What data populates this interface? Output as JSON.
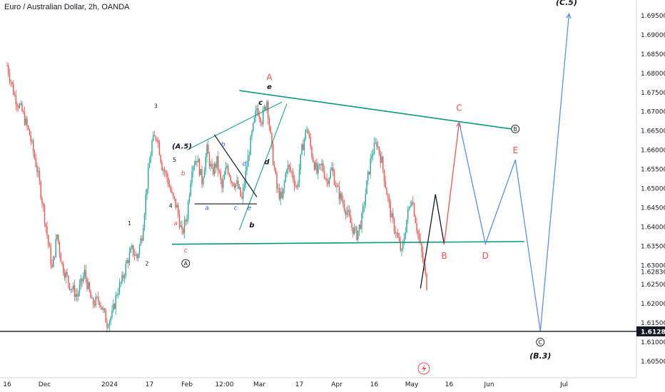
{
  "header": {
    "title": "Euro / Australian Dollar, 2h, OANDA"
  },
  "chart_data": {
    "type": "candlestick",
    "title": "Euro / Australian Dollar, 2h, OANDA",
    "ylim": [
      1.603,
      1.699
    ],
    "y_ticks": [
      "1.69500",
      "1.69000",
      "1.68500",
      "1.68000",
      "1.67500",
      "1.67000",
      "1.66500",
      "1.66000",
      "1.65500",
      "1.65000",
      "1.64500",
      "1.64000",
      "1.63500",
      "1.63000",
      "1.62830",
      "1.62500",
      "1.62000",
      "1.61500",
      "1.61000",
      "1.60500"
    ],
    "x_ticks": [
      {
        "label": "16",
        "t": 0.0
      },
      {
        "label": "Dec",
        "t": 15.0
      },
      {
        "label": "2024",
        "t": 41.0
      },
      {
        "label": "17",
        "t": 57.0
      },
      {
        "label": "Feb",
        "t": 72.0
      },
      {
        "label": "12:00",
        "t": 87.0
      },
      {
        "label": "Mar",
        "t": 101.0
      },
      {
        "label": "17",
        "t": 117.0
      },
      {
        "label": "Apr",
        "t": 132.0
      },
      {
        "label": "16",
        "t": 147.0
      },
      {
        "label": "May",
        "t": 162.0
      },
      {
        "label": "16",
        "t": 177.0
      },
      {
        "label": "Jun",
        "t": 193.0
      },
      {
        "label": "Jul",
        "t": 223.0
      }
    ],
    "price_line": {
      "value": 1.61281,
      "label": "1.61281",
      "color": "#131722"
    },
    "candle_colors": {
      "up": "#26a69a",
      "down": "#ef5350"
    },
    "price_path": [
      [
        0,
        1.682
      ],
      [
        3,
        1.674
      ],
      [
        6,
        1.67
      ],
      [
        9,
        1.664
      ],
      [
        12,
        1.655
      ],
      [
        14,
        1.647
      ],
      [
        16,
        1.638
      ],
      [
        18,
        1.629
      ],
      [
        20,
        1.638
      ],
      [
        22,
        1.63
      ],
      [
        25,
        1.625
      ],
      [
        28,
        1.622
      ],
      [
        31,
        1.628
      ],
      [
        34,
        1.62
      ],
      [
        37,
        1.621
      ],
      [
        40,
        1.615
      ],
      [
        42,
        1.617
      ],
      [
        44,
        1.623
      ],
      [
        46,
        1.626
      ],
      [
        48,
        1.631
      ],
      [
        50,
        1.634
      ],
      [
        52,
        1.632
      ],
      [
        54,
        1.638
      ],
      [
        56,
        1.651
      ],
      [
        58,
        1.662
      ],
      [
        60,
        1.664
      ],
      [
        62,
        1.656
      ],
      [
        64,
        1.653
      ],
      [
        66,
        1.648
      ],
      [
        68,
        1.645
      ],
      [
        70,
        1.638
      ],
      [
        72,
        1.643
      ],
      [
        74,
        1.656
      ],
      [
        76,
        1.658
      ],
      [
        78,
        1.652
      ],
      [
        80,
        1.66
      ],
      [
        82,
        1.654
      ],
      [
        84,
        1.657
      ],
      [
        86,
        1.65
      ],
      [
        88,
        1.656
      ],
      [
        90,
        1.652
      ],
      [
        92,
        1.651
      ],
      [
        94,
        1.647
      ],
      [
        96,
        1.656
      ],
      [
        98,
        1.664
      ],
      [
        100,
        1.671
      ],
      [
        102,
        1.668
      ],
      [
        104,
        1.673
      ],
      [
        106,
        1.66
      ],
      [
        108,
        1.65
      ],
      [
        110,
        1.647
      ],
      [
        112,
        1.656
      ],
      [
        114,
        1.654
      ],
      [
        116,
        1.65
      ],
      [
        118,
        1.66
      ],
      [
        120,
        1.666
      ],
      [
        122,
        1.659
      ],
      [
        124,
        1.654
      ],
      [
        126,
        1.656
      ],
      [
        128,
        1.652
      ],
      [
        130,
        1.655
      ],
      [
        132,
        1.65
      ],
      [
        134,
        1.647
      ],
      [
        136,
        1.644
      ],
      [
        138,
        1.64
      ],
      [
        140,
        1.638
      ],
      [
        142,
        1.642
      ],
      [
        144,
        1.651
      ],
      [
        146,
        1.659
      ],
      [
        148,
        1.662
      ],
      [
        150,
        1.657
      ],
      [
        152,
        1.649
      ],
      [
        154,
        1.642
      ],
      [
        156,
        1.638
      ],
      [
        158,
        1.633
      ],
      [
        160,
        1.642
      ],
      [
        162,
        1.648
      ],
      [
        164,
        1.64
      ],
      [
        166,
        1.633
      ],
      [
        168,
        1.625
      ]
    ],
    "annotations": [
      {
        "text": "(C.5)",
        "t": 224,
        "v": 1.6985,
        "color": "#131722",
        "italic": true,
        "bold": true,
        "size": 11
      },
      {
        "text": "A",
        "t": 105,
        "v": 1.679,
        "color": "#ef5350",
        "size": 12
      },
      {
        "text": "e",
        "t": 105,
        "v": 1.6765,
        "color": "#131722",
        "italic": true,
        "bold": true,
        "size": 10
      },
      {
        "text": "c",
        "t": 101.5,
        "v": 1.6725,
        "color": "#131722",
        "italic": true,
        "bold": true,
        "size": 10
      },
      {
        "text": "3",
        "t": 59.5,
        "v": 1.6715,
        "color": "#131722",
        "size": 8
      },
      {
        "text": "C",
        "t": 181,
        "v": 1.671,
        "color": "#ef5350",
        "size": 12
      },
      {
        "text": "B",
        "t": 203.5,
        "v": 1.6655,
        "color": "#131722",
        "circled": true,
        "size": 8
      },
      {
        "text": "E",
        "t": 203.5,
        "v": 1.66,
        "color": "#ef5350",
        "size": 12
      },
      {
        "text": "(A.5)",
        "t": 70,
        "v": 1.661,
        "color": "#131722",
        "italic": true,
        "bold": true,
        "size": 10
      },
      {
        "text": "5",
        "t": 67,
        "v": 1.6575,
        "color": "#131722",
        "size": 8
      },
      {
        "text": "b",
        "t": 86.5,
        "v": 1.6615,
        "color": "#2962ff",
        "italic": true,
        "size": 9
      },
      {
        "text": "d",
        "t": 95,
        "v": 1.6565,
        "color": "#2962ff",
        "italic": true,
        "size": 9
      },
      {
        "text": "d",
        "t": 104,
        "v": 1.657,
        "color": "#131722",
        "italic": true,
        "bold": true,
        "size": 10
      },
      {
        "text": "b",
        "t": 70.5,
        "v": 1.654,
        "color": "#ef5350",
        "italic": true,
        "size": 9
      },
      {
        "text": "4",
        "t": 65.5,
        "v": 1.6455,
        "color": "#131722",
        "size": 8
      },
      {
        "text": "a",
        "t": 80,
        "v": 1.645,
        "color": "#2962ff",
        "italic": true,
        "size": 9
      },
      {
        "text": "c",
        "t": 91.5,
        "v": 1.645,
        "color": "#2962ff",
        "italic": true,
        "size": 9
      },
      {
        "text": "e",
        "t": 97,
        "v": 1.645,
        "color": "#2962ff",
        "italic": true,
        "size": 9
      },
      {
        "text": "1",
        "t": 49,
        "v": 1.641,
        "color": "#131722",
        "size": 8
      },
      {
        "text": "a",
        "t": 67.5,
        "v": 1.641,
        "color": "#ef5350",
        "italic": true,
        "size": 9
      },
      {
        "text": "b",
        "t": 98,
        "v": 1.6405,
        "color": "#131722",
        "italic": true,
        "bold": true,
        "size": 10
      },
      {
        "text": "c",
        "t": 71.5,
        "v": 1.634,
        "color": "#ef5350",
        "italic": true,
        "size": 9
      },
      {
        "text": "A",
        "t": 71.5,
        "v": 1.6305,
        "color": "#131722",
        "circled": true,
        "size": 8
      },
      {
        "text": "2",
        "t": 56,
        "v": 1.6305,
        "color": "#131722",
        "size": 8
      },
      {
        "text": "B",
        "t": 175,
        "v": 1.6325,
        "color": "#ef5350",
        "size": 12
      },
      {
        "text": "D",
        "t": 191.5,
        "v": 1.6325,
        "color": "#ef5350",
        "size": 12
      },
      {
        "text": "C",
        "t": 213.5,
        "v": 1.61,
        "color": "#131722",
        "circled": true,
        "size": 8
      },
      {
        "text": "(B.3)",
        "t": 213.5,
        "v": 1.6065,
        "color": "#131722",
        "italic": true,
        "bold": true,
        "size": 11
      }
    ],
    "trendlines": [
      {
        "name": "upper-trendline",
        "color": "#089981",
        "width": 1.6,
        "points": [
          [
            93,
            1.6755
          ],
          [
            202,
            1.6655
          ]
        ]
      },
      {
        "name": "lower-trendline",
        "color": "#089981",
        "width": 1.6,
        "points": [
          [
            66,
            1.6355
          ],
          [
            207,
            1.6362
          ]
        ]
      },
      {
        "name": "wedge-upper-line",
        "color": "#089981",
        "width": 1,
        "points": [
          [
            72,
            1.66
          ],
          [
            110,
            1.6725
          ]
        ]
      },
      {
        "name": "wedge-lower-line",
        "color": "#089981",
        "width": 1,
        "points": [
          [
            93,
            1.6392
          ],
          [
            112,
            1.672
          ]
        ]
      },
      {
        "name": "triangle-top-line",
        "color": "#131722",
        "width": 1.2,
        "points": [
          [
            83,
            1.664
          ],
          [
            100,
            1.6478
          ]
        ]
      },
      {
        "name": "triangle-base-line",
        "color": "#131722",
        "width": 1.2,
        "points": [
          [
            75,
            1.646
          ],
          [
            100,
            1.646
          ]
        ]
      }
    ],
    "projections": [
      {
        "name": "projection-black",
        "color": "#131722",
        "points": [
          [
            165.5,
            1.624
          ],
          [
            171.5,
            1.6485
          ],
          [
            175,
            1.6355
          ]
        ]
      },
      {
        "name": "projection-red",
        "color": "#ef5350",
        "arrow": true,
        "points": [
          [
            175,
            1.6355
          ],
          [
            181,
            1.6672
          ]
        ]
      },
      {
        "name": "projection-blue",
        "color": "#5b8def",
        "arrow": true,
        "points": [
          [
            181,
            1.6672
          ],
          [
            191.5,
            1.6356
          ],
          [
            203.5,
            1.6575
          ],
          [
            213.5,
            1.6128
          ],
          [
            225,
            1.6955
          ]
        ]
      }
    ]
  }
}
